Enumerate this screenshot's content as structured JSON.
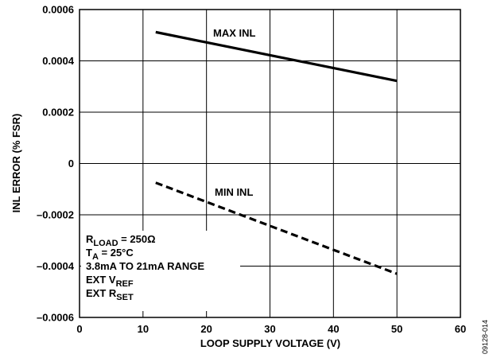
{
  "chart_data": {
    "type": "line",
    "xlabel": "LOOP SUPPLY VOLTAGE (V)",
    "ylabel": "INL ERROR (% FSR)",
    "xlim": [
      0,
      60
    ],
    "ylim": [
      -0.0006,
      0.0006
    ],
    "x_ticks": [
      "0",
      "10",
      "20",
      "30",
      "40",
      "50",
      "60"
    ],
    "y_ticks": [
      "–0.0006",
      "–0.0004",
      "–0.0002",
      "0",
      "0.0002",
      "0.0004",
      "0.0006"
    ],
    "grid": true,
    "series": [
      {
        "name": "MAX INL",
        "style": "solid",
        "x": [
          12,
          50
        ],
        "y": [
          0.000512,
          0.000322
        ]
      },
      {
        "name": "MIN INL",
        "style": "dashed",
        "x": [
          12,
          50
        ],
        "y": [
          -7.5e-05,
          -0.00043
        ]
      }
    ],
    "conditions": [
      {
        "main": "R",
        "sub": "LOAD",
        "rest": " = 250Ω"
      },
      {
        "main": "T",
        "sub": "A",
        "rest": " = 25°C"
      },
      {
        "main": "3.8mA TO 21mA RANGE",
        "sub": "",
        "rest": ""
      },
      {
        "main": "EXT V",
        "sub": "REF",
        "rest": ""
      },
      {
        "main": "EXT R",
        "sub": "SET",
        "rest": ""
      }
    ],
    "figure_id": "09128-014"
  }
}
